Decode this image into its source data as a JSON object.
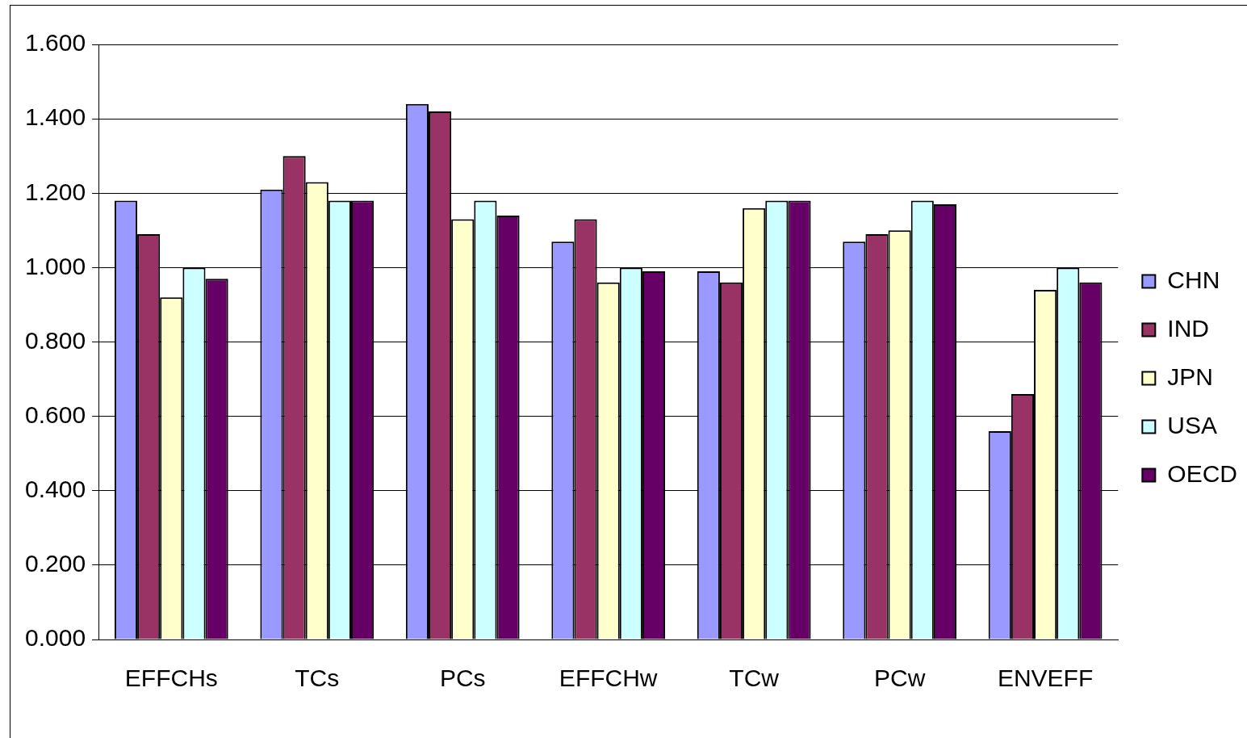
{
  "chart_data": {
    "type": "bar",
    "categories": [
      "EFFCHs",
      "TCs",
      "PCs",
      "EFFCHw",
      "TCw",
      "PCw",
      "ENVEFF"
    ],
    "series": [
      {
        "name": "CHN",
        "color": "#9999ff",
        "values": [
          1.18,
          1.21,
          1.44,
          1.07,
          0.99,
          1.07,
          0.56
        ]
      },
      {
        "name": "IND",
        "color": "#993366",
        "values": [
          1.09,
          1.3,
          1.42,
          1.13,
          0.96,
          1.09,
          0.66
        ]
      },
      {
        "name": "JPN",
        "color": "#ffffcc",
        "values": [
          0.92,
          1.23,
          1.13,
          0.96,
          1.16,
          1.1,
          0.94
        ]
      },
      {
        "name": "USA",
        "color": "#ccffff",
        "values": [
          1.0,
          1.18,
          1.18,
          1.0,
          1.18,
          1.18,
          1.0
        ]
      },
      {
        "name": "OECD",
        "color": "#660066",
        "values": [
          0.97,
          1.18,
          1.14,
          0.99,
          1.18,
          1.17,
          0.96
        ]
      }
    ],
    "ylim": [
      0,
      1.6
    ],
    "yticks": [
      {
        "value": 0,
        "label": "0.000"
      },
      {
        "value": 0.2,
        "label": "0.200"
      },
      {
        "value": 0.4,
        "label": "0.400"
      },
      {
        "value": 0.6,
        "label": "0.600"
      },
      {
        "value": 0.8,
        "label": "0.800"
      },
      {
        "value": 1.0,
        "label": "1.000"
      },
      {
        "value": 1.2,
        "label": "1.200"
      },
      {
        "value": 1.4,
        "label": "1.400"
      },
      {
        "value": 1.6,
        "label": "1.600"
      }
    ],
    "grid": "y",
    "legend": "right"
  }
}
